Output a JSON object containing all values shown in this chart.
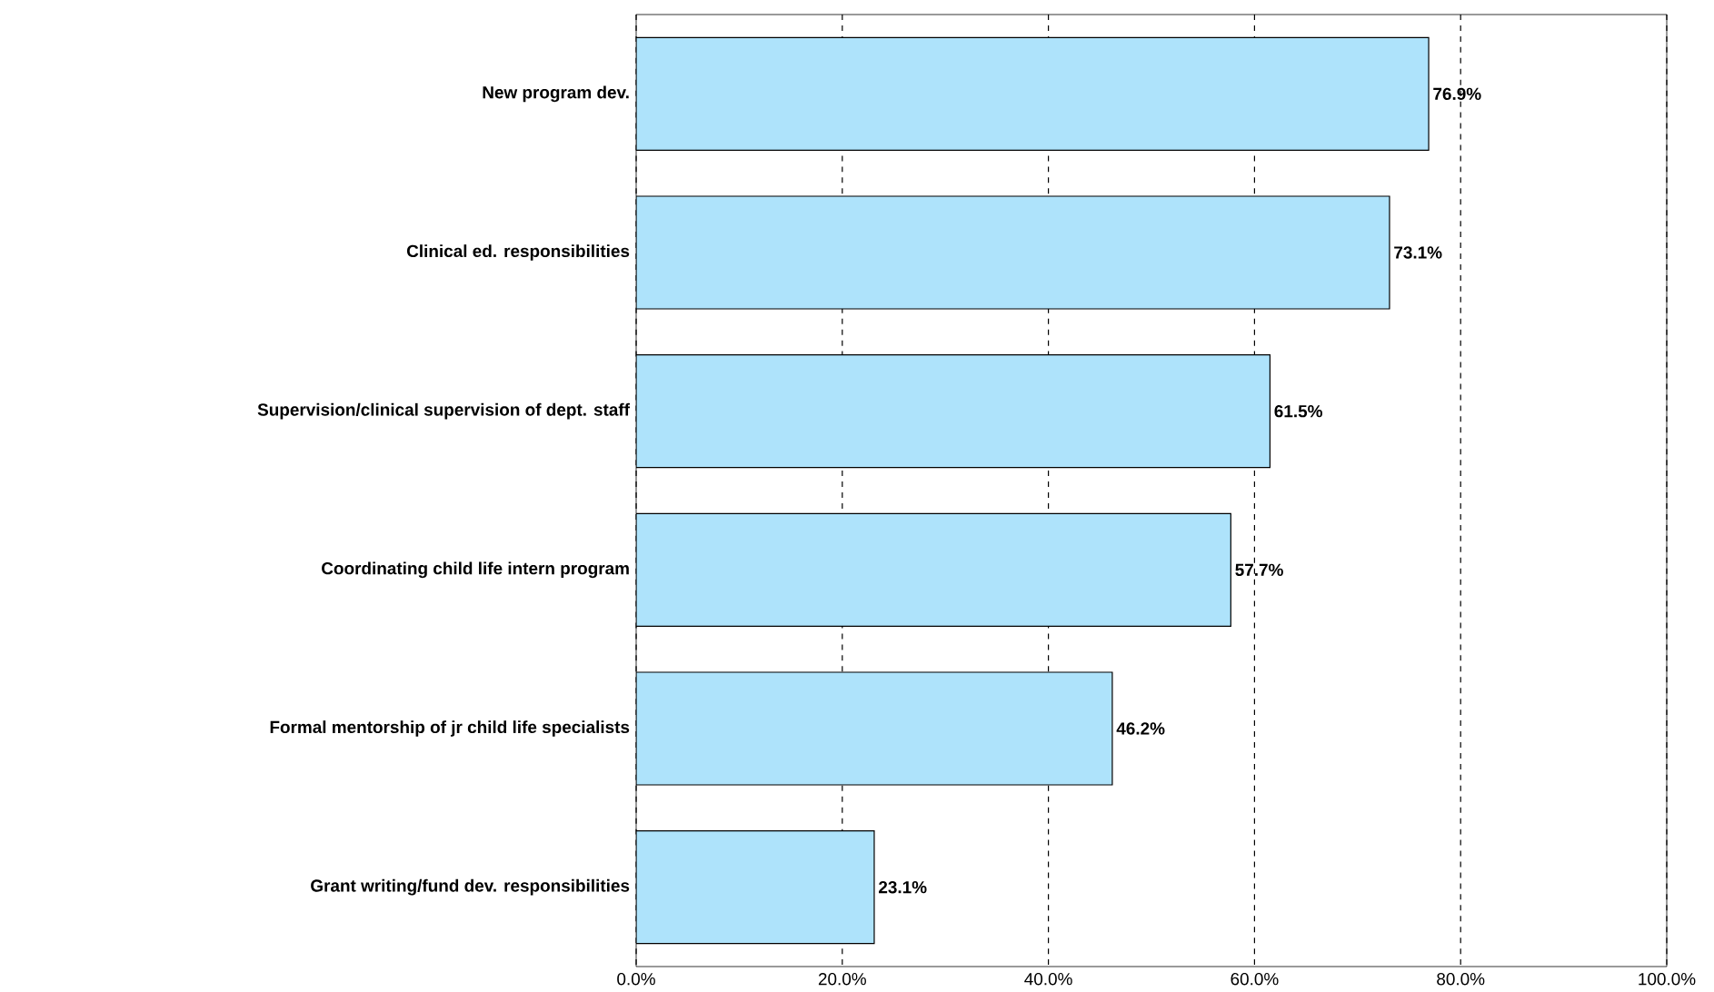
{
  "chart_data": {
    "type": "bar",
    "orientation": "horizontal",
    "categories": [
      "New program dev.",
      "Clinical ed. responsibilities",
      "Supervision/clinical supervision of dept. staff",
      "Coordinating child life intern program",
      "Formal mentorship of jr child life specialists",
      "Grant writing/fund dev. responsibilities"
    ],
    "values": [
      76.9,
      73.1,
      61.5,
      57.7,
      46.2,
      23.1
    ],
    "value_labels": [
      "76.9%",
      "73.1%",
      "61.5%",
      "57.7%",
      "46.2%",
      "23.1%"
    ],
    "color": "#aee3fb",
    "xlim": [
      0,
      100
    ],
    "xticks": [
      {
        "value": 0,
        "label": "0.0%"
      },
      {
        "value": 20,
        "label": "20.0%"
      },
      {
        "value": 40,
        "label": "40.0%"
      },
      {
        "value": 60,
        "label": "60.0%"
      },
      {
        "value": 80,
        "label": "80.0%"
      },
      {
        "value": 100,
        "label": "100.0%"
      }
    ],
    "grid": "x"
  }
}
